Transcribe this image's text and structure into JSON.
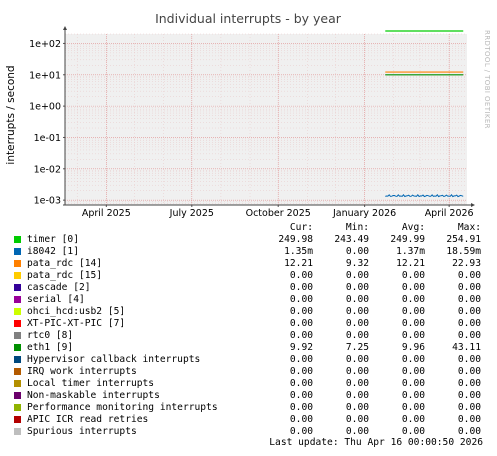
{
  "chart_data": {
    "type": "line",
    "title": "Individual interrupts - by year",
    "ylabel": "interrupts / second",
    "yscale": "log",
    "ylim": [
      0.0007,
      200
    ],
    "y_ticks": [
      {
        "value": 100,
        "label": "1e+02"
      },
      {
        "value": 10,
        "label": "1e+01"
      },
      {
        "value": 1,
        "label": "1e+00"
      },
      {
        "value": 0.1,
        "label": "1e-01"
      },
      {
        "value": 0.01,
        "label": "1e-02"
      },
      {
        "value": 0.001,
        "label": "1e-03"
      }
    ],
    "xlim": [
      "2025-02-16",
      "2026-04-20"
    ],
    "x_ticks": [
      {
        "date": "2025-04-01",
        "label": "April 2025"
      },
      {
        "date": "2025-07-01",
        "label": "July 2025"
      },
      {
        "date": "2025-10-01",
        "label": "October 2025"
      },
      {
        "date": "2026-01-01",
        "label": "January 2026"
      },
      {
        "date": "2026-04-01",
        "label": "April 2026"
      }
    ],
    "data_start": "2026-01-23",
    "data_end": "2026-04-16",
    "grid": true,
    "watermark": "RRDTOOL / TOBI OETIKER",
    "series": [
      {
        "name": "timer [0]",
        "color": "#00cc00",
        "plotted": 249.98,
        "cur": "249.98",
        "min": "243.49",
        "avg": "249.99",
        "max": "254.91"
      },
      {
        "name": "i8042 [1]",
        "color": "#0066b3",
        "plotted": 0.00137,
        "cur": "1.35m",
        "min": "0.00",
        "avg": "1.37m",
        "max": "18.59m"
      },
      {
        "name": "pata_rdc [14]",
        "color": "#ff8000",
        "plotted": 12.21,
        "cur": "12.21",
        "min": "9.32",
        "avg": "12.21",
        "max": "22.93"
      },
      {
        "name": "pata_rdc [15]",
        "color": "#ffcc00",
        "plotted": null,
        "cur": "0.00",
        "min": "0.00",
        "avg": "0.00",
        "max": "0.00"
      },
      {
        "name": "cascade [2]",
        "color": "#330099",
        "plotted": null,
        "cur": "0.00",
        "min": "0.00",
        "avg": "0.00",
        "max": "0.00"
      },
      {
        "name": "serial [4]",
        "color": "#990099",
        "plotted": null,
        "cur": "0.00",
        "min": "0.00",
        "avg": "0.00",
        "max": "0.00"
      },
      {
        "name": "ohci_hcd:usb2 [5]",
        "color": "#ccff00",
        "plotted": null,
        "cur": "0.00",
        "min": "0.00",
        "avg": "0.00",
        "max": "0.00"
      },
      {
        "name": "XT-PIC-XT-PIC [7]",
        "color": "#ff0000",
        "plotted": null,
        "cur": "0.00",
        "min": "0.00",
        "avg": "0.00",
        "max": "0.00"
      },
      {
        "name": "rtc0 [8]",
        "color": "#808080",
        "plotted": null,
        "cur": "0.00",
        "min": "0.00",
        "avg": "0.00",
        "max": "0.00"
      },
      {
        "name": "eth1 [9]",
        "color": "#008f00",
        "plotted": 9.96,
        "cur": "9.92",
        "min": "7.25",
        "avg": "9.96",
        "max": "43.11"
      },
      {
        "name": "Hypervisor callback interrupts",
        "color": "#00487d",
        "plotted": null,
        "cur": "0.00",
        "min": "0.00",
        "avg": "0.00",
        "max": "0.00"
      },
      {
        "name": "IRQ work interrupts",
        "color": "#b35a00",
        "plotted": null,
        "cur": "0.00",
        "min": "0.00",
        "avg": "0.00",
        "max": "0.00"
      },
      {
        "name": "Local timer interrupts",
        "color": "#b38f00",
        "plotted": null,
        "cur": "0.00",
        "min": "0.00",
        "avg": "0.00",
        "max": "0.00"
      },
      {
        "name": "Non-maskable interrupts",
        "color": "#6b006b",
        "plotted": null,
        "cur": "0.00",
        "min": "0.00",
        "avg": "0.00",
        "max": "0.00"
      },
      {
        "name": "Performance monitoring interrupts",
        "color": "#8fb300",
        "plotted": null,
        "cur": "0.00",
        "min": "0.00",
        "avg": "0.00",
        "max": "0.00"
      },
      {
        "name": "APIC ICR read retries",
        "color": "#b30000",
        "plotted": null,
        "cur": "0.00",
        "min": "0.00",
        "avg": "0.00",
        "max": "0.00"
      },
      {
        "name": "Spurious interrupts",
        "color": "#bebebe",
        "plotted": null,
        "cur": "0.00",
        "min": "0.00",
        "avg": "0.00",
        "max": "0.00"
      }
    ]
  },
  "legend_header": {
    "cur": "Cur:",
    "min": "Min:",
    "avg": "Avg:",
    "max": "Max:"
  },
  "footer": "Last update: Thu Apr 16 00:00:50 2026"
}
